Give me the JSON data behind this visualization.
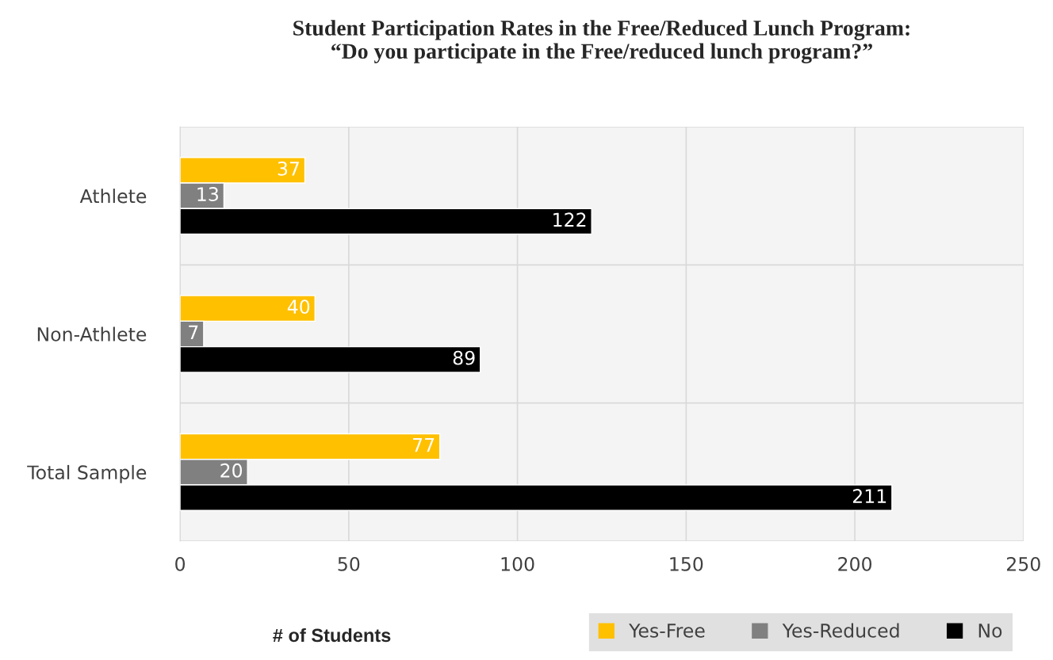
{
  "chart_data": {
    "type": "bar",
    "orientation": "horizontal",
    "title": "Student Participation Rates in the Free/Reduced Lunch Program:\n“Do you participate in the Free/reduced lunch program?”",
    "xlabel": "# of Students",
    "categories": [
      "Athlete",
      "Non-Athlete",
      "Total Sample"
    ],
    "series": [
      {
        "name": "Yes-Free",
        "color": "#ffc000",
        "values": [
          37,
          40,
          77
        ]
      },
      {
        "name": "Yes-Reduced",
        "color": "#808080",
        "values": [
          13,
          7,
          20
        ]
      },
      {
        "name": "No",
        "color": "#000000",
        "values": [
          122,
          89,
          211
        ]
      }
    ],
    "xlim": [
      0,
      250
    ],
    "xticks": [
      0,
      50,
      100,
      150,
      200,
      250
    ],
    "grid": true,
    "legend": "bottom",
    "data_labels": true
  }
}
